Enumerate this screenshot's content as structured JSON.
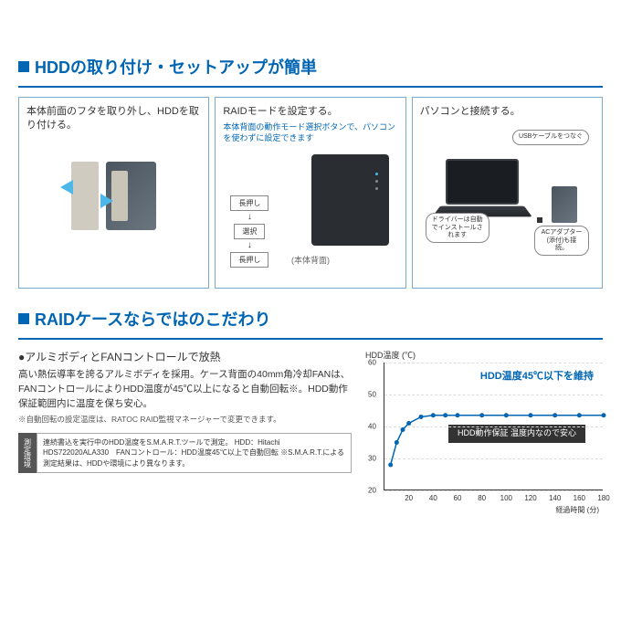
{
  "section1": {
    "title": "HDDの取り付け・セットアップが簡単",
    "steps": [
      {
        "label": "本体前面のフタを取り外し、HDDを取り付ける。"
      },
      {
        "label": "RAIDモードを設定する。",
        "sublabel": "本体背面の動作モード選択ボタンで、パソコンを使わずに設定できます",
        "flow": [
          "長押し",
          "選択",
          "長押し"
        ],
        "caption": "(本体背面)"
      },
      {
        "label": "パソコンと接続する。",
        "callout1": "USBケーブルをつなぐ",
        "callout2": "ドライバーは自動でインストールされます",
        "callout3": "ACアダプター(添付)も接続。"
      }
    ]
  },
  "section2": {
    "title": "RAIDケースならではのこだわり",
    "subtitle": "●アルミボディとFANコントロールで放熱",
    "body": "高い熱伝導率を誇るアルミボディを採用。ケース背面の40mm角冷却FANは、FANコントロールによりHDD温度が45℃以上になると自動回転※。HDD動作保証範囲内に温度を保ち安心。",
    "note": "※自動回転の設定温度は、RATOC RAID監視マネージャーで変更できます。",
    "env_label": "測定環境",
    "env_content": "連続書込を実行中のHDD温度をS.M.A.R.T.ツールで測定。\nHDD：Hitachi HDS722020ALA330　FANコントロール：HDD温度45℃以上で自動回転\n※S.M.A.R.T.による測定結果は、HDDや環境により異なります。"
  },
  "chart": {
    "ytitle": "HDD温度 (℃)",
    "xtitle": "経過時間 (分)",
    "ylim": [
      20,
      60
    ],
    "ytick_step": 10,
    "xlim": [
      0,
      180
    ],
    "xtick_step": 20,
    "annotation": "HDD温度45℃以下を維持",
    "boxtext": "HDD動作保証\n温度内なので安心",
    "grid_color": "#dddddd",
    "line_color": "#0066b3",
    "data": [
      {
        "x": 5,
        "y": 28
      },
      {
        "x": 10,
        "y": 35
      },
      {
        "x": 15,
        "y": 39
      },
      {
        "x": 20,
        "y": 41
      },
      {
        "x": 30,
        "y": 43
      },
      {
        "x": 40,
        "y": 43.5
      },
      {
        "x": 50,
        "y": 43.5
      },
      {
        "x": 60,
        "y": 43.5
      },
      {
        "x": 80,
        "y": 43.5
      },
      {
        "x": 100,
        "y": 43.5
      },
      {
        "x": 120,
        "y": 43.5
      },
      {
        "x": 140,
        "y": 43.5
      },
      {
        "x": 160,
        "y": 43.5
      },
      {
        "x": 180,
        "y": 43.5
      }
    ]
  }
}
